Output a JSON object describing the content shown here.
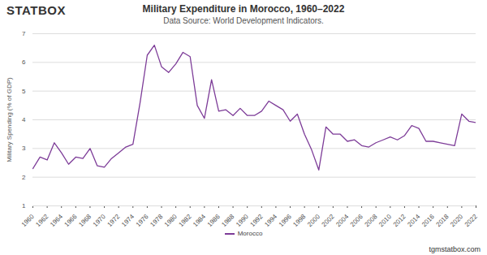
{
  "chart_data": {
    "type": "line",
    "logo": "STATBOX",
    "title": "Military Expenditure in Morocco, 1960–2022",
    "subtitle": "Data Source: World Development Indicators.",
    "footer": "tgmstatbox.com",
    "y_label": "Military Spending (% of GDP)",
    "x": [
      1960,
      1961,
      1962,
      1963,
      1964,
      1965,
      1966,
      1967,
      1968,
      1969,
      1970,
      1971,
      1972,
      1973,
      1974,
      1975,
      1976,
      1977,
      1978,
      1979,
      1980,
      1981,
      1982,
      1983,
      1984,
      1985,
      1986,
      1987,
      1988,
      1989,
      1990,
      1991,
      1992,
      1993,
      1994,
      1995,
      1996,
      1997,
      1998,
      1999,
      2000,
      2001,
      2002,
      2003,
      2004,
      2005,
      2006,
      2007,
      2008,
      2009,
      2010,
      2011,
      2012,
      2013,
      2014,
      2015,
      2016,
      2017,
      2018,
      2019,
      2020,
      2021,
      2022
    ],
    "series": [
      {
        "name": "Morocco",
        "color": "#7d3c98",
        "values": [
          2.3,
          2.7,
          2.6,
          3.2,
          2.85,
          2.45,
          2.7,
          2.65,
          3.0,
          2.4,
          2.35,
          2.65,
          2.85,
          3.05,
          3.15,
          4.6,
          6.25,
          6.6,
          5.85,
          5.65,
          5.95,
          6.35,
          6.2,
          4.5,
          4.05,
          5.4,
          4.3,
          4.35,
          4.15,
          4.4,
          4.15,
          4.15,
          4.3,
          4.65,
          4.5,
          4.35,
          3.95,
          4.2,
          3.5,
          2.95,
          2.25,
          3.75,
          3.5,
          3.5,
          3.25,
          3.3,
          3.1,
          3.05,
          3.2,
          3.3,
          3.4,
          3.3,
          3.45,
          3.8,
          3.7,
          3.25,
          3.25,
          3.2,
          3.15,
          3.1,
          4.2,
          3.95,
          3.9
        ]
      }
    ],
    "xlim": [
      1960,
      2022
    ],
    "xticks": [
      1960,
      1962,
      1964,
      1966,
      1968,
      1970,
      1972,
      1974,
      1976,
      1978,
      1980,
      1982,
      1984,
      1986,
      1988,
      1990,
      1992,
      1994,
      1996,
      1998,
      2000,
      2002,
      2004,
      2006,
      2008,
      2010,
      2012,
      2014,
      2016,
      2018,
      2020,
      2022
    ],
    "ylim": [
      1,
      7
    ],
    "yticks": [
      1,
      2,
      3,
      4,
      5,
      6,
      7
    ],
    "grid": true,
    "legend": "bottom"
  }
}
